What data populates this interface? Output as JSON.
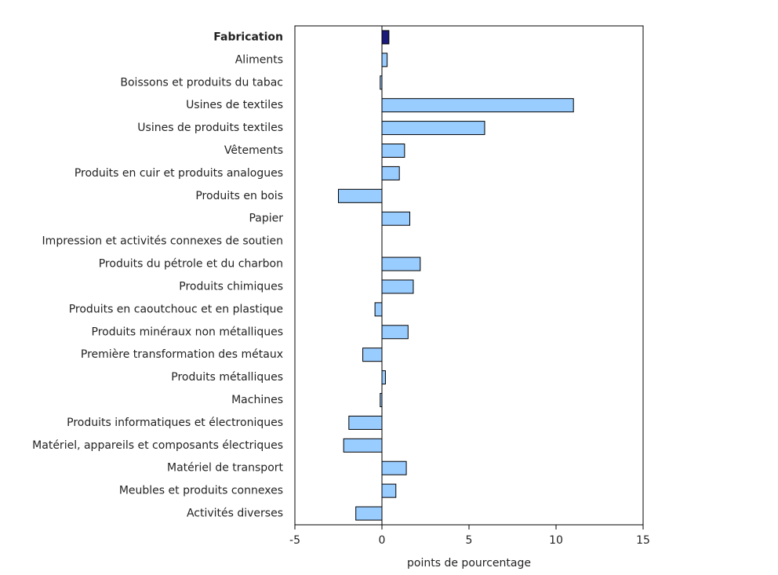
{
  "chart_data": {
    "type": "barh",
    "x_label": "points de pourcentage",
    "categories": [
      "Fabrication",
      "Aliments",
      "Boissons et produits du tabac",
      "Usines de textiles",
      "Usines de produits textiles",
      "Vêtements",
      "Produits en cuir et produits analogues",
      "Produits en bois",
      "Papier",
      "Impression et activités connexes de soutien",
      "Produits du pétrole et du charbon",
      "Produits chimiques",
      "Produits en caoutchouc et en plastique",
      "Produits minéraux non métalliques",
      "Première transformation des métaux",
      "Produits métalliques",
      "Machines",
      "Produits informatiques et électroniques",
      "Matériel, appareils et composants électriques",
      "Matériel de transport",
      "Meubles et produits connexes",
      "Activités diverses"
    ],
    "values": [
      0.4,
      0.3,
      -0.1,
      11.0,
      5.9,
      1.3,
      1.0,
      -2.5,
      1.6,
      0.0,
      2.2,
      1.8,
      -0.4,
      1.5,
      -1.1,
      0.2,
      -0.1,
      -1.9,
      -2.2,
      1.4,
      0.8,
      -1.5
    ],
    "colors": [
      "#1a1a7a",
      "#99ccff",
      "#99ccff",
      "#99ccff",
      "#99ccff",
      "#99ccff",
      "#99ccff",
      "#99ccff",
      "#99ccff",
      "#99ccff",
      "#99ccff",
      "#99ccff",
      "#99ccff",
      "#99ccff",
      "#99ccff",
      "#99ccff",
      "#99ccff",
      "#99ccff",
      "#99ccff",
      "#99ccff",
      "#99ccff",
      "#99ccff"
    ],
    "xlim": [
      -5,
      15
    ],
    "xticks": [
      -5,
      0,
      5,
      10,
      15
    ],
    "grid": false
  }
}
